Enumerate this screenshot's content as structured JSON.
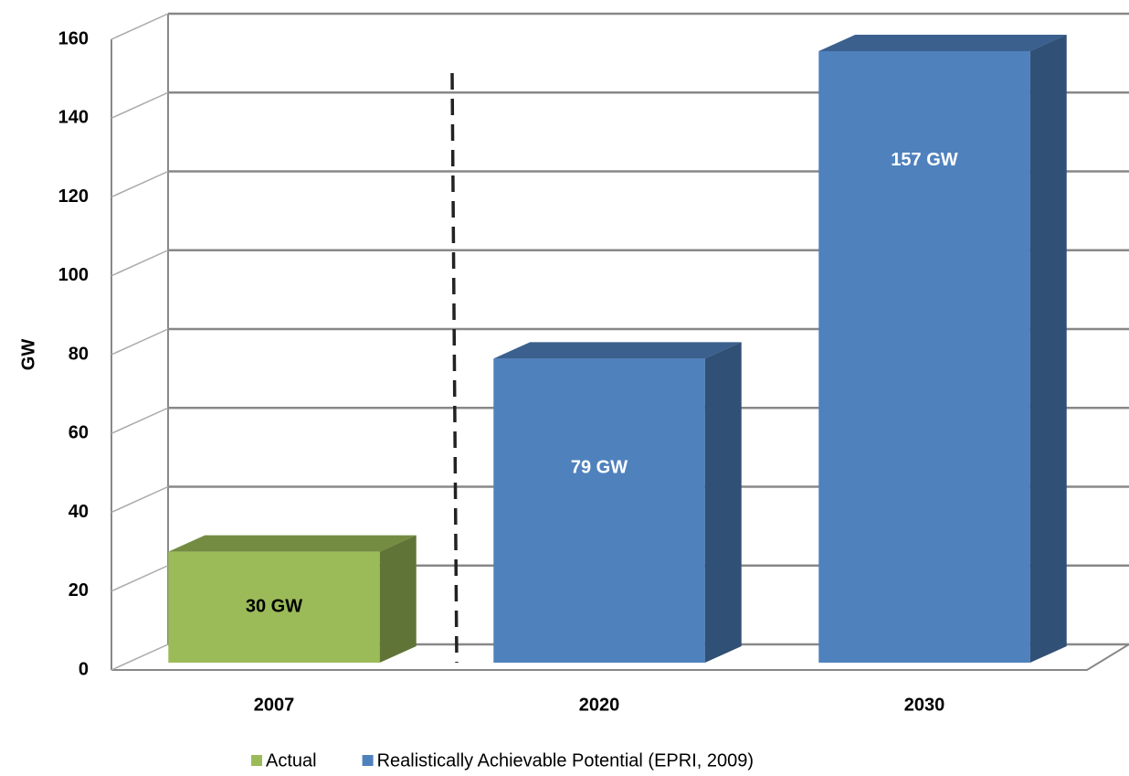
{
  "chart_data": {
    "type": "bar3d",
    "y_label": "GW",
    "categories": [
      "2007",
      "2020",
      "2030"
    ],
    "series": [
      {
        "name": "Actual",
        "color": "#9bbb59",
        "label_color": "#000000",
        "values": [
          30,
          null,
          null
        ],
        "value_labels": [
          "30 GW",
          null,
          null
        ]
      },
      {
        "name": "Realistically Achievable Potential (EPRI, 2009)",
        "color": "#4f81bd",
        "label_color": "#ffffff",
        "values": [
          null,
          79,
          157
        ],
        "value_labels": [
          null,
          "79 GW",
          "157 GW"
        ]
      }
    ],
    "ylim": [
      0,
      160
    ],
    "yticks": [
      0,
      20,
      40,
      60,
      80,
      100,
      120,
      140,
      160
    ],
    "grid": true,
    "legend": "bottom"
  }
}
